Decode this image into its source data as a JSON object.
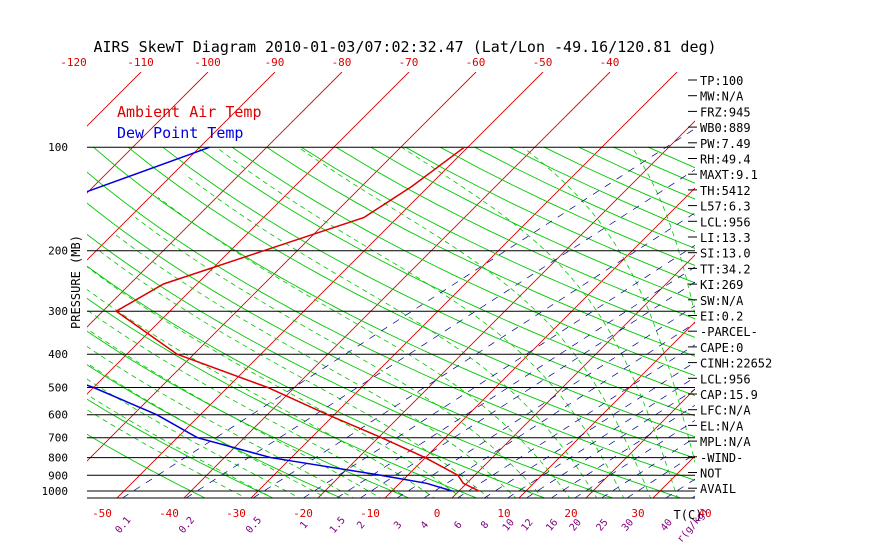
{
  "chart_data": {
    "type": "line",
    "title": "AIRS SkewT Diagram 2010-01-03/07:02:32.47 (Lat/Lon -49.16/120.81 deg)",
    "ylabel": "PRESSURE (MB)",
    "xlabel_right": "T(C)",
    "mixing_unit": "r(g/kg)",
    "legend": {
      "placement": "top-left",
      "items": [
        {
          "label": "Ambient Air Temp",
          "color": "#dd0000"
        },
        {
          "label": "Dew Point Temp",
          "color": "#0000dd"
        }
      ]
    },
    "pressure_ticks": [
      100,
      200,
      300,
      400,
      500,
      600,
      700,
      800,
      900,
      1000
    ],
    "pressure_range": [
      100,
      1050
    ],
    "bottom_temp_ticks": [
      -50,
      -40,
      -30,
      -20,
      -10,
      0,
      10,
      20,
      30,
      40
    ],
    "top_temp_ticks": [
      -120,
      -110,
      -100,
      -90,
      -80,
      -70,
      -60,
      -50,
      -40
    ],
    "mixing_ratio_labels": [
      {
        "label": "0.1",
        "x": -46.5
      },
      {
        "label": "0.2",
        "x": -37
      },
      {
        "label": "0.5",
        "x": -27
      },
      {
        "label": "1",
        "x": -19.5
      },
      {
        "label": "1.5",
        "x": -14.5
      },
      {
        "label": "2",
        "x": -11
      },
      {
        "label": "3",
        "x": -5.5
      },
      {
        "label": "4",
        "x": -1.5
      },
      {
        "label": "6",
        "x": 3.5
      },
      {
        "label": "8",
        "x": 7.5
      },
      {
        "label": "10",
        "x": 11
      },
      {
        "label": "12",
        "x": 13.8
      },
      {
        "label": "16",
        "x": 17.5
      },
      {
        "label": "20",
        "x": 21
      },
      {
        "label": "25",
        "x": 25
      },
      {
        "label": "30",
        "x": 28.8
      },
      {
        "label": "40",
        "x": 34.6
      },
      {
        "label": "r(g/kg)",
        "x": 38.5
      }
    ],
    "series": [
      {
        "name": "Ambient Air Temp",
        "color": "#dd0000",
        "points": [
          {
            "p": 100,
            "x": -50.5
          },
          {
            "p": 130,
            "x": -52.5
          },
          {
            "p": 160,
            "x": -55
          },
          {
            "p": 200,
            "x": -65
          },
          {
            "p": 250,
            "x": -75
          },
          {
            "p": 300,
            "x": -78
          },
          {
            "p": 400,
            "x": -62.5
          },
          {
            "p": 500,
            "x": -44
          },
          {
            "p": 600,
            "x": -31
          },
          {
            "p": 700,
            "x": -19.5
          },
          {
            "p": 800,
            "x": -10
          },
          {
            "p": 900,
            "x": -2.5
          },
          {
            "p": 950,
            "x": -0.5
          },
          {
            "p": 1000,
            "x": 3
          }
        ]
      },
      {
        "name": "Dew Point Temp",
        "color": "#0000dd",
        "points": [
          {
            "p": 100,
            "x": -88.5
          },
          {
            "p": 160,
            "x": -107
          },
          {
            "p": 200,
            "x": -114
          },
          {
            "p": 250,
            "x": -117
          },
          {
            "p": 300,
            "x": -111
          },
          {
            "p": 400,
            "x": -89
          },
          {
            "p": 500,
            "x": -70
          },
          {
            "p": 600,
            "x": -56.5
          },
          {
            "p": 700,
            "x": -47
          },
          {
            "p": 800,
            "x": -33
          },
          {
            "p": 900,
            "x": -14
          },
          {
            "p": 950,
            "x": -6
          },
          {
            "p": 1000,
            "x": -1
          }
        ]
      }
    ]
  },
  "stats": [
    "TP:100",
    "MW:N/A",
    "FRZ:945",
    "WB0:889",
    "PW:7.49",
    "RH:49.4",
    "MAXT:9.1",
    "TH:5412",
    "L57:6.3",
    "LCL:956",
    "LI:13.3",
    "SI:13.0",
    "TT:34.2",
    "KI:269",
    "SW:N/A",
    "EI:0.2",
    "-PARCEL-",
    "CAPE:0",
    "CINH:22652",
    "LCL:956",
    "CAP:15.9",
    "LFC:N/A",
    "EL:N/A",
    "MPL:N/A",
    "-WIND-",
    "NOT",
    "AVAIL"
  ],
  "colors": {
    "grid": "#000000",
    "isotherm": "#dd0000",
    "dry_adiabat": "#00c800",
    "moist_adiabat": "#00c800",
    "mixing_ratio": "#000088",
    "tick_labels": "#dd0000",
    "mixing_labels": "#800080"
  }
}
